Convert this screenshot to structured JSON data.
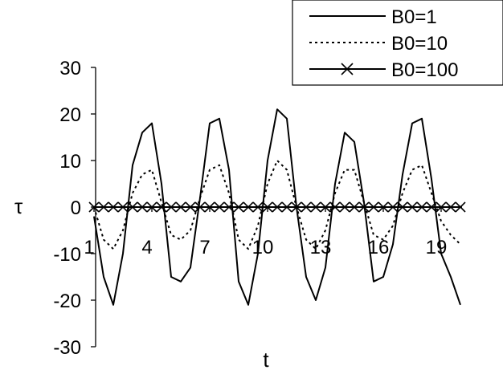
{
  "chart_data": {
    "type": "line",
    "xlabel": "t",
    "ylabel": "τ",
    "ylim": [
      -30,
      30
    ],
    "xlim": [
      1,
      20
    ],
    "yticks": [
      30,
      20,
      10,
      0,
      -10,
      -20,
      -30
    ],
    "xticks": [
      1,
      4,
      7,
      10,
      13,
      16,
      19
    ],
    "legend_position": "top-right",
    "series": [
      {
        "name": "B0=1",
        "style": "solid",
        "x": [
          1,
          1.5,
          2,
          2.5,
          3,
          3.5,
          4,
          4.5,
          5,
          5.5,
          6,
          6.5,
          7,
          7.5,
          8,
          8.5,
          9,
          9.5,
          10,
          10.5,
          11,
          11.5,
          12,
          12.5,
          13,
          13.5,
          14,
          14.5,
          15,
          15.5,
          16,
          16.5,
          17,
          17.5,
          18,
          18.5,
          19,
          19.5,
          20
        ],
        "values": [
          -2,
          -15,
          -21,
          -10,
          9,
          16,
          18,
          5,
          -15,
          -16,
          -13,
          2,
          18,
          19,
          8,
          -16,
          -21,
          -10,
          10,
          21,
          19,
          0,
          -15,
          -20,
          -13,
          5,
          16,
          14,
          1,
          -16,
          -15,
          -8,
          7,
          18,
          19,
          6,
          -10,
          -15,
          -21
        ]
      },
      {
        "name": "B0=10",
        "style": "dotted",
        "x": [
          1,
          1.5,
          2,
          2.5,
          3,
          3.5,
          4,
          4.5,
          5,
          5.5,
          6,
          6.5,
          7,
          7.5,
          8,
          8.5,
          9,
          9.5,
          10,
          10.5,
          11,
          11.5,
          12,
          12.5,
          13,
          13.5,
          14,
          14.5,
          15,
          15.5,
          16,
          16.5,
          17,
          17.5,
          18,
          18.5,
          19,
          19.5,
          20
        ],
        "values": [
          0,
          -7,
          -9,
          -5,
          3,
          7,
          8,
          1,
          -6,
          -7,
          -5,
          2,
          8,
          9,
          3,
          -7,
          -9,
          -4,
          5,
          10,
          8,
          0,
          -7,
          -9,
          -5,
          3,
          8,
          8,
          1,
          -6,
          -7,
          -4,
          3,
          8,
          9,
          3,
          -3,
          -6,
          -8
        ]
      },
      {
        "name": "B0=100",
        "style": "solid-x-markers",
        "x": [
          1,
          1.5,
          2,
          2.5,
          3,
          3.5,
          4,
          4.5,
          5,
          5.5,
          6,
          6.5,
          7,
          7.5,
          8,
          8.5,
          9,
          9.5,
          10,
          10.5,
          11,
          11.5,
          12,
          12.5,
          13,
          13.5,
          14,
          14.5,
          15,
          15.5,
          16,
          16.5,
          17,
          17.5,
          18,
          18.5,
          19,
          19.5,
          20
        ],
        "values": [
          0,
          0,
          0,
          0,
          0,
          0,
          0,
          0,
          0,
          0,
          0,
          0,
          0,
          0,
          0,
          0,
          0,
          0,
          0,
          0,
          0,
          0,
          0,
          0,
          0,
          0,
          0,
          0,
          0,
          0,
          0,
          0,
          0,
          0,
          0,
          0,
          0,
          0,
          0
        ]
      }
    ]
  }
}
